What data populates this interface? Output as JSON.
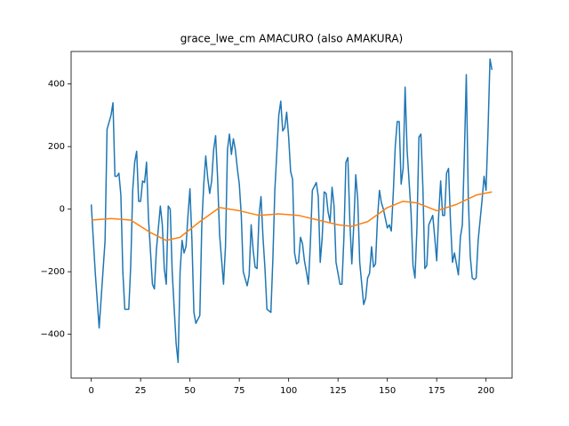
{
  "chart_data": {
    "type": "line",
    "title": "grace_lwe_cm AMACURO (also AMAKURA)",
    "xlim": [
      -10.2,
      213.2
    ],
    "ylim": [
      -540,
      504
    ],
    "xticks": [
      0,
      25,
      50,
      75,
      100,
      125,
      150,
      175,
      200
    ],
    "yticks": [
      {
        "value": -400,
        "label": "−400"
      },
      {
        "value": -200,
        "label": "−200"
      },
      0,
      200,
      400
    ],
    "series": [
      {
        "color": "#1f77b4",
        "x": [
          0,
          2,
          4,
          7,
          8,
          10,
          11,
          12,
          13,
          14,
          15,
          16,
          17,
          19,
          20,
          21,
          22,
          23,
          24,
          25,
          26,
          27,
          28,
          29,
          31,
          32,
          33,
          35,
          36,
          37,
          38,
          39,
          40,
          41,
          43,
          44,
          45,
          46,
          47,
          48,
          49,
          50,
          51,
          52,
          53,
          55,
          56,
          57,
          58,
          59,
          60,
          61,
          62,
          63,
          64,
          65,
          67,
          68,
          69,
          70,
          71,
          72,
          73,
          74,
          75,
          76,
          77,
          79,
          80,
          81,
          82,
          83,
          84,
          85,
          86,
          87,
          88,
          89,
          91,
          92,
          93,
          95,
          96,
          97,
          98,
          99,
          100,
          101,
          102,
          103,
          104,
          105,
          106,
          107,
          108,
          109,
          110,
          111,
          112,
          114,
          115,
          116,
          117,
          118,
          119,
          120,
          121,
          122,
          123,
          124,
          126,
          127,
          128,
          129,
          130,
          131,
          132,
          133,
          134,
          135,
          136,
          138,
          139,
          140,
          141,
          142,
          143,
          144,
          145,
          146,
          147,
          148,
          150,
          151,
          152,
          153,
          154,
          155,
          156,
          157,
          158,
          159,
          160,
          162,
          163,
          164,
          165,
          166,
          167,
          168,
          169,
          170,
          171,
          173,
          174,
          175,
          176,
          177,
          178,
          179,
          180,
          181,
          182,
          183,
          184,
          186,
          187,
          188,
          189,
          190,
          191,
          192,
          193,
          194,
          195,
          196,
          198,
          199,
          200,
          201,
          202,
          203
        ],
        "values": [
          15,
          -200,
          -380,
          -100,
          255,
          300,
          340,
          105,
          105,
          115,
          45,
          -200,
          -320,
          -320,
          -180,
          60,
          150,
          185,
          25,
          25,
          90,
          85,
          150,
          -30,
          -240,
          -255,
          -130,
          10,
          -50,
          -190,
          -240,
          10,
          0,
          -200,
          -430,
          -490,
          -200,
          -100,
          -140,
          -120,
          -20,
          65,
          -100,
          -330,
          -365,
          -340,
          -50,
          80,
          170,
          100,
          50,
          90,
          190,
          235,
          100,
          -80,
          -240,
          -120,
          190,
          240,
          175,
          225,
          190,
          130,
          80,
          -20,
          -200,
          -245,
          -210,
          -50,
          -130,
          -185,
          -190,
          -20,
          40,
          -90,
          -190,
          -320,
          -330,
          -160,
          60,
          300,
          345,
          250,
          260,
          310,
          230,
          120,
          95,
          -140,
          -175,
          -170,
          -90,
          -110,
          -165,
          -200,
          -240,
          -110,
          60,
          85,
          40,
          -170,
          -90,
          55,
          50,
          -10,
          -40,
          70,
          10,
          -170,
          -240,
          -240,
          -90,
          150,
          165,
          -40,
          -175,
          -50,
          110,
          30,
          -170,
          -305,
          -285,
          -220,
          -205,
          -120,
          -185,
          -175,
          -30,
          60,
          20,
          0,
          -60,
          -50,
          -70,
          50,
          200,
          280,
          280,
          80,
          130,
          390,
          190,
          -10,
          -180,
          -220,
          -60,
          230,
          240,
          70,
          -190,
          -180,
          -50,
          -20,
          -90,
          -165,
          -20,
          90,
          -20,
          -20,
          115,
          130,
          -40,
          -170,
          -140,
          -210,
          -90,
          -50,
          170,
          430,
          40,
          -150,
          -220,
          -225,
          -220,
          -100,
          30,
          105,
          60,
          250,
          480,
          445
        ]
      },
      {
        "color": "#ff7f0e",
        "x": [
          0,
          10,
          20,
          30,
          38,
          45,
          55,
          65,
          75,
          85,
          95,
          105,
          115,
          125,
          132,
          140,
          150,
          158,
          165,
          175,
          185,
          195,
          203
        ],
        "values": [
          -35,
          -30,
          -35,
          -75,
          -100,
          -90,
          -40,
          5,
          -5,
          -20,
          -15,
          -20,
          -35,
          -50,
          -55,
          -40,
          5,
          25,
          20,
          -5,
          15,
          45,
          55
        ]
      }
    ]
  }
}
